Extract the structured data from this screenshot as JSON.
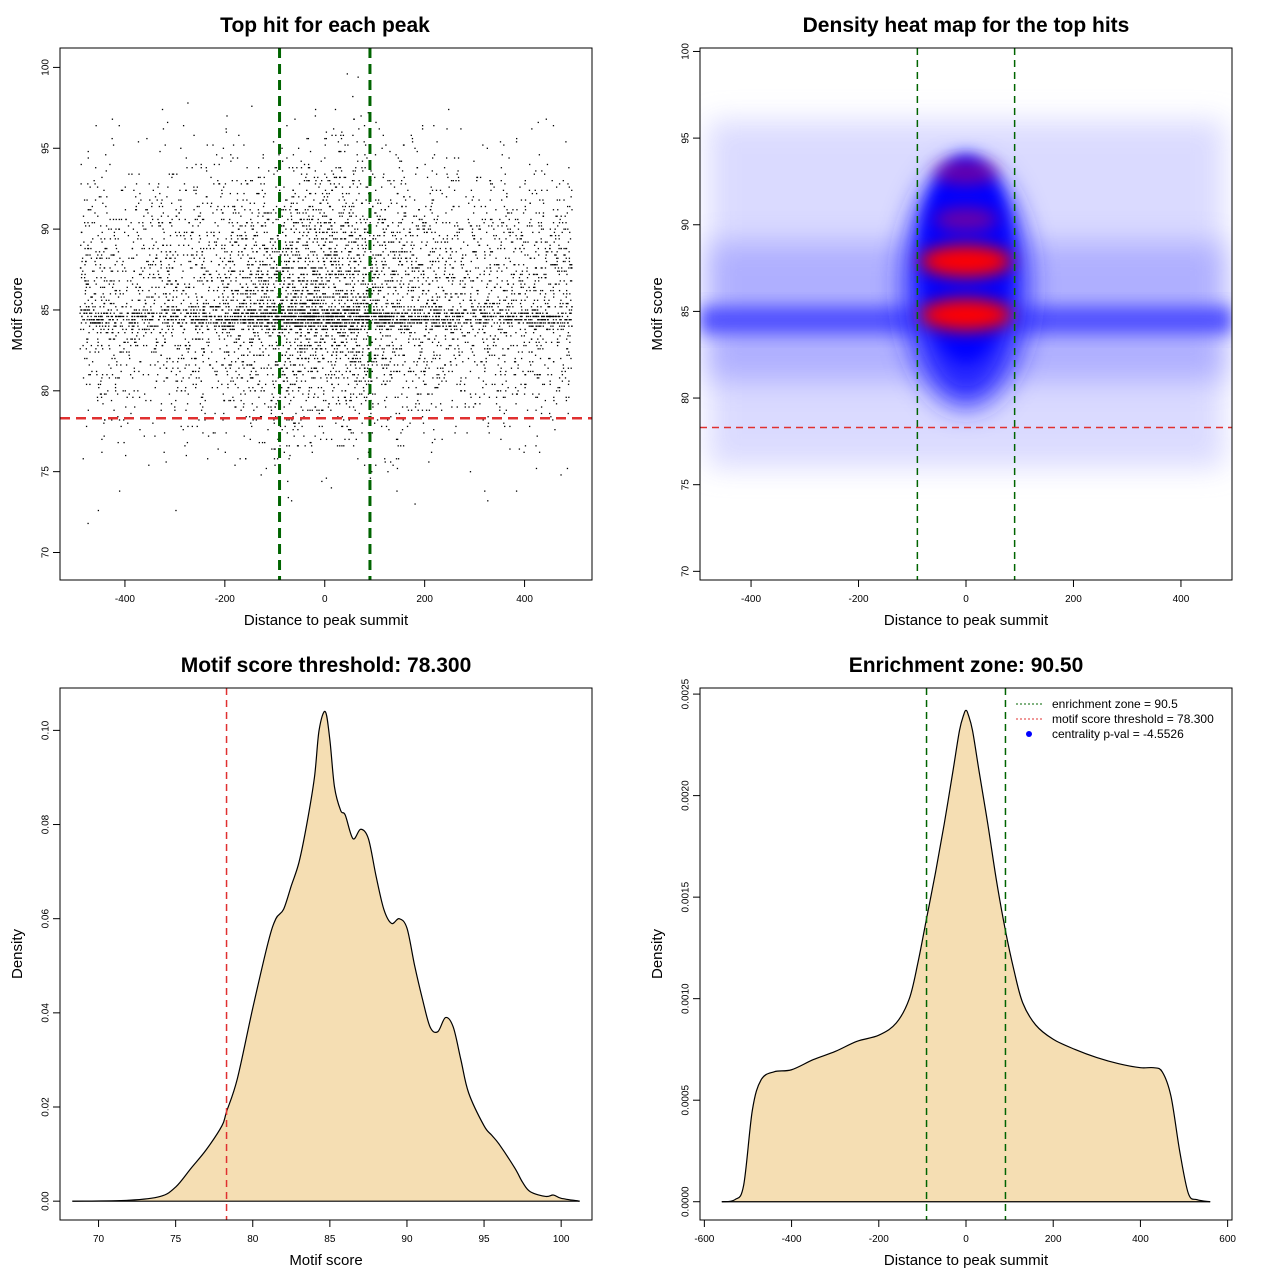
{
  "colors": {
    "green_line": "#006400",
    "red_line": "#e03030",
    "density_fill": "#f5deb3",
    "heat_low": "#ffffff",
    "heat_mid": "#0000ff",
    "heat_high": "#ff0000"
  },
  "chart_data": [
    {
      "type": "scatter",
      "title": "Top hit for each peak",
      "xlabel": "Distance to peak summit",
      "ylabel": "Motif score",
      "xlim": [
        -530,
        535
      ],
      "ylim": [
        68.3,
        101.2
      ],
      "xticks": [
        -400,
        -200,
        0,
        200,
        400
      ],
      "yticks": [
        70,
        75,
        80,
        85,
        90,
        95,
        100
      ],
      "x_range_points": [
        -490,
        495
      ],
      "score_distribution": {
        "peaks": [
          84.5,
          86,
          88,
          90,
          93
        ],
        "threshold_min": 69.6,
        "max": 100
      },
      "vlines": [
        -90.5,
        90.5
      ],
      "hline": 78.3
    },
    {
      "type": "heatmap",
      "title": "Density heat map for the top hits",
      "xlabel": "Distance to peak summit",
      "ylabel": "Motif score",
      "xlim": [
        -495,
        495
      ],
      "ylim": [
        69.5,
        100.2
      ],
      "xticks": [
        -400,
        -200,
        0,
        200,
        400
      ],
      "yticks": [
        70,
        75,
        80,
        85,
        90,
        95,
        100
      ],
      "hotspots": [
        {
          "x": 0,
          "y": 84.8,
          "level": "high"
        },
        {
          "x": 0,
          "y": 87.9,
          "level": "high"
        },
        {
          "x": 0,
          "y": 90.3,
          "level": "medium"
        },
        {
          "x": 0,
          "y": 93,
          "level": "medium"
        },
        {
          "x": 0,
          "y": 84.5,
          "level": "band"
        }
      ],
      "vlines": [
        -90.5,
        90.5
      ],
      "hline": 78.3
    },
    {
      "type": "area",
      "title": "Motif score threshold: 78.300",
      "xlabel": "Motif score",
      "ylabel": "Density",
      "xlim": [
        67.5,
        102
      ],
      "ylim": [
        -0.004,
        0.109
      ],
      "xticks": [
        70,
        75,
        80,
        85,
        90,
        95,
        100
      ],
      "yticks": [
        0.0,
        0.02,
        0.04,
        0.06,
        0.08,
        0.1
      ],
      "ytick_labels": [
        "0.00",
        "0.02",
        "0.04",
        "0.06",
        "0.08",
        "0.10"
      ],
      "x": [
        68.3,
        72,
        74,
        75,
        76,
        77,
        78,
        78.3,
        79,
        80,
        81,
        81.5,
        82,
        82.5,
        83,
        83.5,
        84,
        84.3,
        84.7,
        85,
        85.3,
        85.7,
        86,
        86.5,
        87,
        87.5,
        88,
        88.5,
        89,
        89.5,
        90,
        90.5,
        91,
        91.5,
        92,
        92.5,
        93,
        93.5,
        94,
        95,
        95.5,
        96,
        97,
        97.5,
        98,
        99,
        99.5,
        100,
        101.2
      ],
      "y": [
        0.0,
        0.0002,
        0.001,
        0.003,
        0.007,
        0.011,
        0.016,
        0.019,
        0.026,
        0.041,
        0.055,
        0.06,
        0.062,
        0.067,
        0.072,
        0.08,
        0.09,
        0.1,
        0.104,
        0.098,
        0.088,
        0.083,
        0.082,
        0.077,
        0.079,
        0.077,
        0.069,
        0.062,
        0.059,
        0.06,
        0.058,
        0.05,
        0.043,
        0.037,
        0.036,
        0.039,
        0.037,
        0.03,
        0.023,
        0.016,
        0.014,
        0.012,
        0.007,
        0.004,
        0.002,
        0.001,
        0.0013,
        0.0006,
        0.0
      ]
    },
    {
      "type": "area",
      "title": "Enrichment zone: 90.50",
      "xlabel": "Distance to peak summit",
      "ylabel": "Density",
      "xlim": [
        -610,
        610
      ],
      "ylim": [
        -9e-05,
        0.00253
      ],
      "xticks": [
        -600,
        -400,
        -200,
        0,
        200,
        400,
        600
      ],
      "yticks": [
        0.0,
        0.0005,
        0.001,
        0.0015,
        0.002,
        0.0025
      ],
      "ytick_labels": [
        "0.0000",
        "0.0005",
        "0.0010",
        "0.0015",
        "0.0020",
        "0.0025"
      ],
      "x": [
        -560,
        -530,
        -510,
        -490,
        -470,
        -440,
        -400,
        -350,
        -300,
        -250,
        -200,
        -160,
        -130,
        -110,
        -90,
        -70,
        -50,
        -30,
        -15,
        -5,
        0,
        5,
        15,
        30,
        50,
        70,
        90,
        110,
        130,
        160,
        200,
        250,
        300,
        350,
        400,
        430,
        450,
        470,
        490,
        510,
        530,
        560
      ],
      "y": [
        0.0,
        1e-05,
        8e-05,
        0.00045,
        0.0006,
        0.00064,
        0.00065,
        0.0007,
        0.00074,
        0.00079,
        0.00082,
        0.00088,
        0.001,
        0.00118,
        0.0014,
        0.00162,
        0.00186,
        0.00212,
        0.00232,
        0.0024,
        0.00242,
        0.0024,
        0.00232,
        0.00212,
        0.00186,
        0.00158,
        0.00134,
        0.00114,
        0.00098,
        0.00087,
        0.0008,
        0.00075,
        0.00071,
        0.00068,
        0.00066,
        0.00066,
        0.00064,
        0.00052,
        0.00025,
        4e-05,
        1e-05,
        0.0
      ],
      "vlines": [
        -90.5,
        90.5
      ],
      "legend": {
        "position": "top-right",
        "entries": [
          {
            "label": "enrichment zone = 90.5",
            "color": "#006400",
            "style": "dotted"
          },
          {
            "label": "motif score threshold = 78.300",
            "color": "#e03030",
            "style": "dotted"
          },
          {
            "label": "centrality p-val = -4.5526",
            "color": "#0000ff",
            "style": "point"
          }
        ]
      }
    }
  ]
}
